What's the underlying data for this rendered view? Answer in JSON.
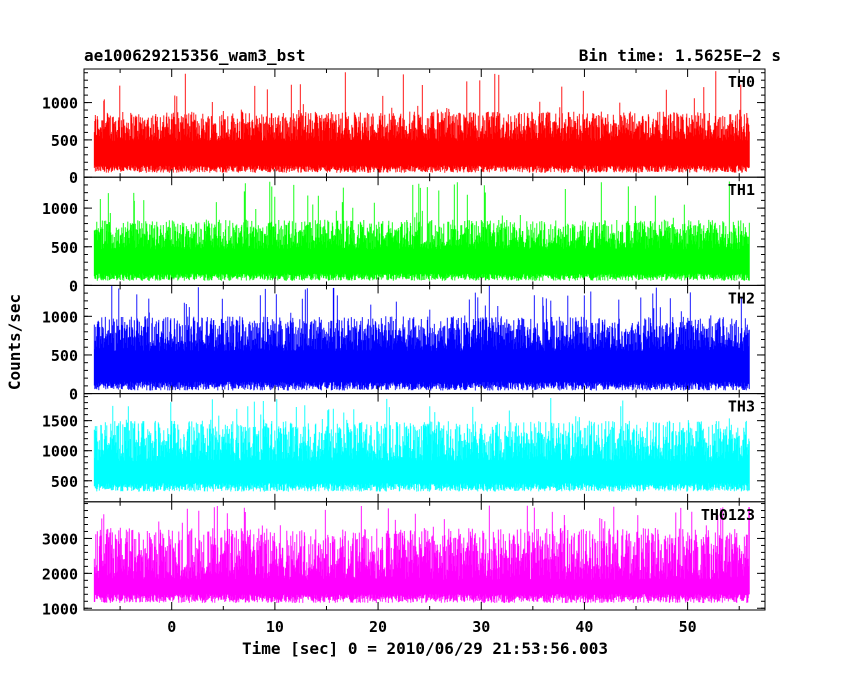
{
  "chart_data": {
    "type": "line",
    "title": "ae100629215356_wam3_bst",
    "subtitle": "Bin time: 1.5625E−2 s",
    "xlabel": "Time [sec] 0 = 2010/06/29 21:53:56.003",
    "ylabel": "Counts/sec",
    "xlim": [
      -8.5,
      57.5
    ],
    "x_range_data": [
      -7.5,
      56.0
    ],
    "x_ticks": [
      0,
      10,
      20,
      30,
      40,
      50
    ],
    "bin_time_s": 0.015625,
    "grid": false,
    "panels": [
      {
        "name": "TH0",
        "color": "#ff0000",
        "ylim": [
          0,
          1450
        ],
        "y_ticks": [
          0,
          500,
          1000
        ],
        "baseline": 60,
        "peak_typ": 880,
        "peak_max": 1450
      },
      {
        "name": "TH1",
        "color": "#00ff00",
        "ylim": [
          0,
          1400
        ],
        "y_ticks": [
          0,
          500,
          1000
        ],
        "baseline": 60,
        "peak_typ": 850,
        "peak_max": 1350
      },
      {
        "name": "TH2",
        "color": "#0000ff",
        "ylim": [
          0,
          1400
        ],
        "y_ticks": [
          0,
          500,
          1000
        ],
        "baseline": 40,
        "peak_typ": 1000,
        "peak_max": 1400
      },
      {
        "name": "TH3",
        "color": "#00ffff",
        "ylim": [
          150,
          1950
        ],
        "y_ticks": [
          500,
          1000,
          1500
        ],
        "baseline": 320,
        "peak_typ": 1500,
        "peak_max": 1900
      },
      {
        "name": "TH0123",
        "color": "#ff00ff",
        "ylim": [
          950,
          4050
        ],
        "y_ticks": [
          1000,
          2000,
          3000
        ],
        "baseline": 1150,
        "peak_typ": 3300,
        "peak_max": 3950
      }
    ]
  }
}
